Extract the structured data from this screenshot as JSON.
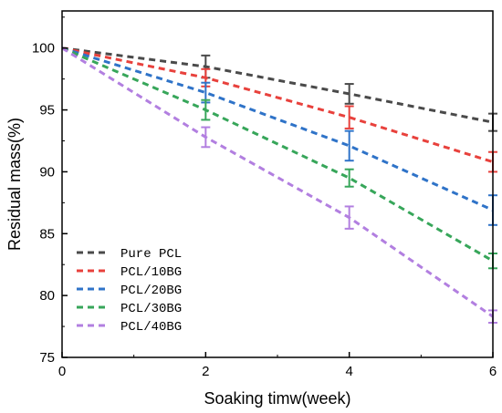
{
  "chart_data": {
    "type": "line",
    "xlabel": "Soaking timw(week)",
    "ylabel": "Residual mass(%)",
    "xlim": [
      0,
      6
    ],
    "ylim": [
      75,
      103
    ],
    "xticks": [
      0,
      2,
      4,
      6
    ],
    "yticks": [
      75,
      80,
      85,
      90,
      95,
      100
    ],
    "grid": false,
    "legend_position": "bottom-left",
    "x": [
      0,
      2,
      4,
      6
    ],
    "series": [
      {
        "name": "Pure PCL",
        "color": "#4a4a4a",
        "values": [
          100,
          98.5,
          96.3,
          94.0
        ],
        "errors": [
          0,
          0.9,
          0.8,
          0.7
        ]
      },
      {
        "name": "PCL/10BG",
        "color": "#e8413c",
        "values": [
          100,
          97.6,
          94.4,
          90.8
        ],
        "errors": [
          0,
          0.7,
          0.9,
          0.8
        ]
      },
      {
        "name": "PCL/20BG",
        "color": "#2f73c8",
        "values": [
          100,
          96.4,
          92.1,
          86.9
        ],
        "errors": [
          0,
          0.8,
          1.2,
          1.2
        ]
      },
      {
        "name": "PCL/30BG",
        "color": "#37a65a",
        "values": [
          100,
          95.0,
          89.5,
          82.8
        ],
        "errors": [
          0,
          0.8,
          0.7,
          0.6
        ]
      },
      {
        "name": "PCL/40BG",
        "color": "#b27fe0",
        "values": [
          100,
          92.8,
          86.3,
          78.3
        ],
        "errors": [
          0,
          0.8,
          0.9,
          0.5
        ]
      }
    ]
  }
}
